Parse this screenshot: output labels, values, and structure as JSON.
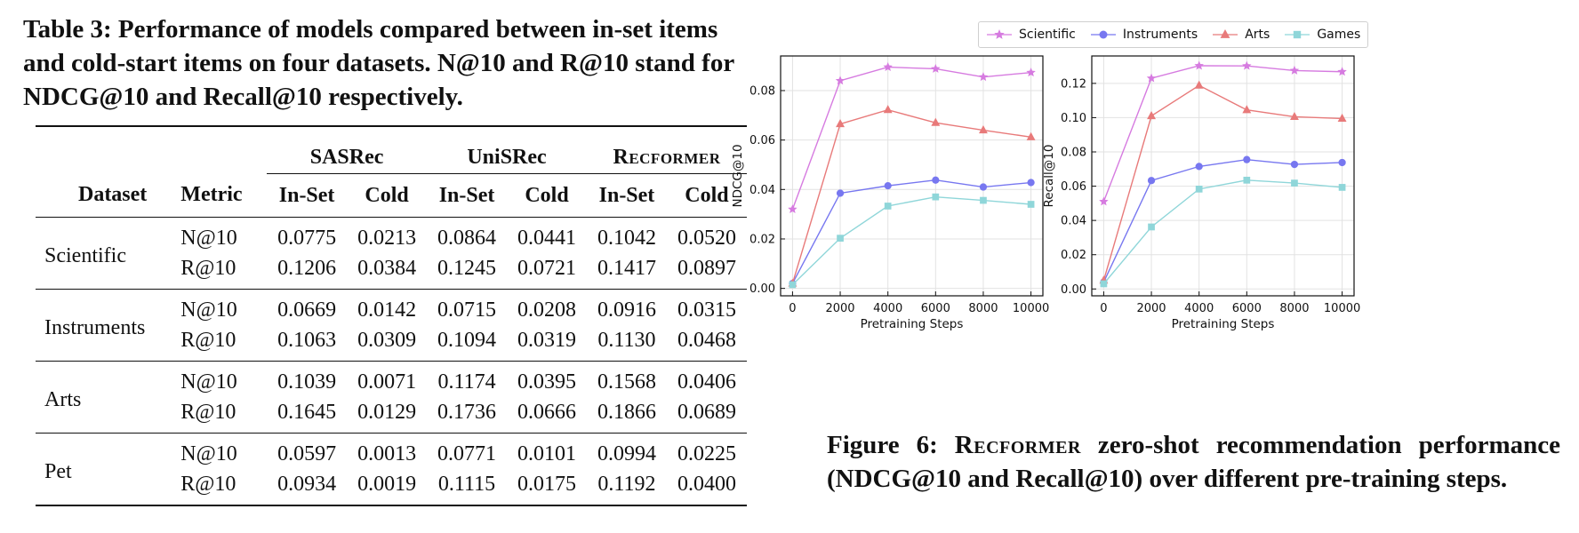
{
  "table": {
    "caption": "Table 3: Performance of models compared between in-set items and cold-start items on four datasets. N@10 and R@10 stand for NDCG@10 and Recall@10 respectively.",
    "group_headers": [
      "SASRec",
      "UniSRec",
      "Recformer"
    ],
    "col_headers": [
      "Dataset",
      "Metric",
      "In-Set",
      "Cold",
      "In-Set",
      "Cold",
      "In-Set",
      "Cold"
    ],
    "rows": [
      {
        "dataset": "Scientific",
        "metrics": [
          {
            "metric": "N@10",
            "values": [
              "0.0775",
              "0.0213",
              "0.0864",
              "0.0441",
              "0.1042",
              "0.0520"
            ]
          },
          {
            "metric": "R@10",
            "values": [
              "0.1206",
              "0.0384",
              "0.1245",
              "0.0721",
              "0.1417",
              "0.0897"
            ]
          }
        ]
      },
      {
        "dataset": "Instruments",
        "metrics": [
          {
            "metric": "N@10",
            "values": [
              "0.0669",
              "0.0142",
              "0.0715",
              "0.0208",
              "0.0916",
              "0.0315"
            ]
          },
          {
            "metric": "R@10",
            "values": [
              "0.1063",
              "0.0309",
              "0.1094",
              "0.0319",
              "0.1130",
              "0.0468"
            ]
          }
        ]
      },
      {
        "dataset": "Arts",
        "metrics": [
          {
            "metric": "N@10",
            "values": [
              "0.1039",
              "0.0071",
              "0.1174",
              "0.0395",
              "0.1568",
              "0.0406"
            ]
          },
          {
            "metric": "R@10",
            "values": [
              "0.1645",
              "0.0129",
              "0.1736",
              "0.0666",
              "0.1866",
              "0.0689"
            ]
          }
        ]
      },
      {
        "dataset": "Pet",
        "metrics": [
          {
            "metric": "N@10",
            "values": [
              "0.0597",
              "0.0013",
              "0.0771",
              "0.0101",
              "0.0994",
              "0.0225"
            ]
          },
          {
            "metric": "R@10",
            "values": [
              "0.0934",
              "0.0019",
              "0.1115",
              "0.0175",
              "0.1192",
              "0.0400"
            ]
          }
        ]
      }
    ]
  },
  "legend": [
    {
      "name": "Scientific",
      "color": "#d67be0",
      "marker": "star"
    },
    {
      "name": "Instruments",
      "color": "#7777f0",
      "marker": "circle"
    },
    {
      "name": "Arts",
      "color": "#e87a7a",
      "marker": "triangle"
    },
    {
      "name": "Games",
      "color": "#8fd6d9",
      "marker": "square"
    }
  ],
  "chart_data": [
    {
      "type": "line",
      "title": "",
      "xlabel": "Pretraining Steps",
      "ylabel": "NDCG@10",
      "x": [
        0,
        2000,
        4000,
        6000,
        8000,
        10000
      ],
      "xticks": [
        "0",
        "2000",
        "4000",
        "6000",
        "8000",
        "10000"
      ],
      "yticks": [
        "0.00",
        "0.02",
        "0.04",
        "0.06",
        "0.08"
      ],
      "ytick_values": [
        0,
        0.02,
        0.04,
        0.06,
        0.08
      ],
      "ylim": [
        -0.003,
        0.094
      ],
      "grid": true,
      "series": [
        {
          "name": "Scientific",
          "values": [
            0.032,
            0.084,
            0.0895,
            0.0888,
            0.0855,
            0.0873
          ]
        },
        {
          "name": "Instruments",
          "values": [
            0.002,
            0.0385,
            0.0415,
            0.0438,
            0.041,
            0.0428
          ]
        },
        {
          "name": "Arts",
          "values": [
            0.002,
            0.0665,
            0.0722,
            0.067,
            0.064,
            0.0612
          ]
        },
        {
          "name": "Games",
          "values": [
            0.0015,
            0.0203,
            0.0333,
            0.037,
            0.0356,
            0.034
          ]
        }
      ]
    },
    {
      "type": "line",
      "title": "",
      "xlabel": "Pretraining Steps",
      "ylabel": "Recall@10",
      "x": [
        0,
        2000,
        4000,
        6000,
        8000,
        10000
      ],
      "xticks": [
        "0",
        "2000",
        "4000",
        "6000",
        "8000",
        "10000"
      ],
      "yticks": [
        "0.00",
        "0.02",
        "0.04",
        "0.06",
        "0.08",
        "0.10",
        "0.12"
      ],
      "ytick_values": [
        0,
        0.02,
        0.04,
        0.06,
        0.08,
        0.1,
        0.12
      ],
      "ylim": [
        -0.004,
        0.136
      ],
      "grid": true,
      "series": [
        {
          "name": "Scientific",
          "values": [
            0.051,
            0.123,
            0.1303,
            0.1302,
            0.1275,
            0.1268
          ]
        },
        {
          "name": "Instruments",
          "values": [
            0.004,
            0.0633,
            0.0715,
            0.0755,
            0.0727,
            0.0738
          ]
        },
        {
          "name": "Arts",
          "values": [
            0.005,
            0.101,
            0.1188,
            0.1045,
            0.1005,
            0.0995
          ]
        },
        {
          "name": "Games",
          "values": [
            0.003,
            0.0362,
            0.0583,
            0.0635,
            0.0618,
            0.0593
          ]
        }
      ]
    }
  ],
  "figure": {
    "caption_prefix": "Figure 6:",
    "caption_model": "Recformer",
    "caption_rest": "zero-shot recommendation performance (NDCG@10 and Recall@10) over different pre-training steps."
  }
}
